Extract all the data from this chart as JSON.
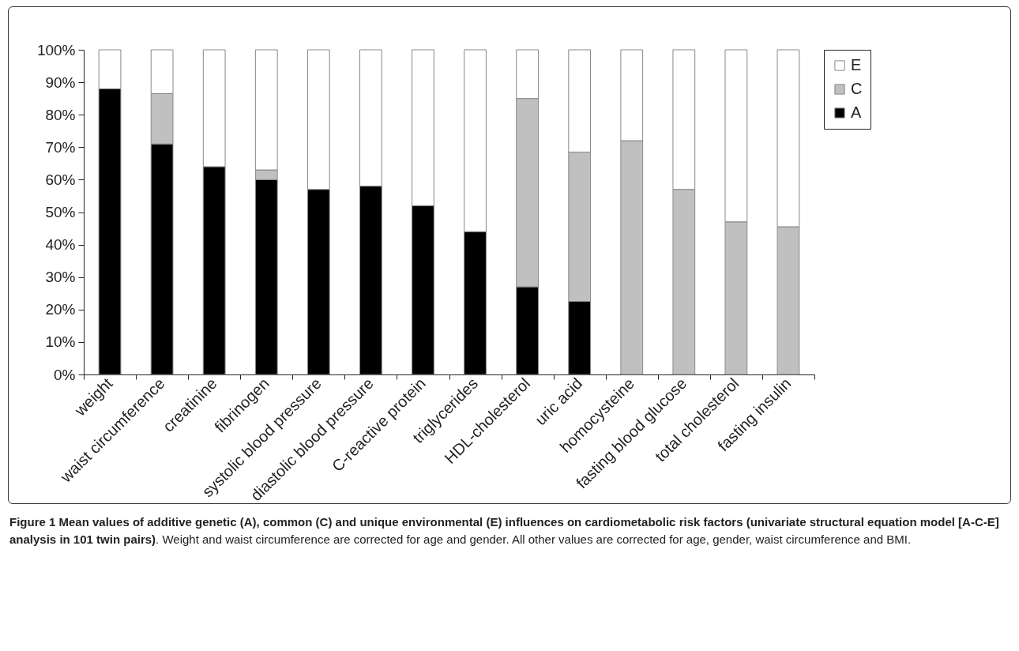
{
  "chart_data": {
    "type": "bar",
    "stacked": true,
    "legend": "right",
    "categories": [
      "weight",
      "waist circumference",
      "creatinine",
      "fibrinogen",
      "systolic blood pressure",
      "diastolic blood pressure",
      "C-reactive protein",
      "triglycerides",
      "HDL-cholesterol",
      "uric acid",
      "homocysteine",
      "fasting blood glucose",
      "total cholesterol",
      "fasting insulin"
    ],
    "series": [
      {
        "name": "A",
        "color": "#000000",
        "values": [
          88,
          71,
          64,
          60,
          57,
          58,
          52,
          44,
          27,
          22.5,
          0,
          0,
          0,
          0
        ]
      },
      {
        "name": "C",
        "color": "#c0c0c0",
        "values": [
          0,
          15.5,
          0,
          3,
          0,
          0,
          0,
          0,
          58,
          46,
          72,
          57,
          47,
          45.5
        ]
      },
      {
        "name": "E",
        "color": "#ffffff",
        "values": [
          12,
          13.5,
          36,
          37,
          43,
          42,
          48,
          56,
          15,
          31.5,
          28,
          43,
          53,
          54.5
        ]
      }
    ],
    "ylim": [
      0,
      100
    ],
    "yticks": [
      {
        "value": 0,
        "label": "0%"
      },
      {
        "value": 10,
        "label": "10%"
      },
      {
        "value": 20,
        "label": "20%"
      },
      {
        "value": 30,
        "label": "30%"
      },
      {
        "value": 40,
        "label": "40%"
      },
      {
        "value": 50,
        "label": "50%"
      },
      {
        "value": 60,
        "label": "60%"
      },
      {
        "value": 70,
        "label": "70%"
      },
      {
        "value": 80,
        "label": "80%"
      },
      {
        "value": 90,
        "label": "90%"
      },
      {
        "value": 100,
        "label": "100%"
      }
    ],
    "grid": false,
    "annotations": [
      "Figure 1 Mean values of additive genetic (A), common (C) and unique environmental (E) influences on cardiometabolic risk factors (univariate structural equation model [A-C-E] analysis in 101 twin pairs)",
      ". Weight and waist circumference are corrected for age and gender. All other values are corrected for age, gender, waist circumference and BMI."
    ]
  }
}
